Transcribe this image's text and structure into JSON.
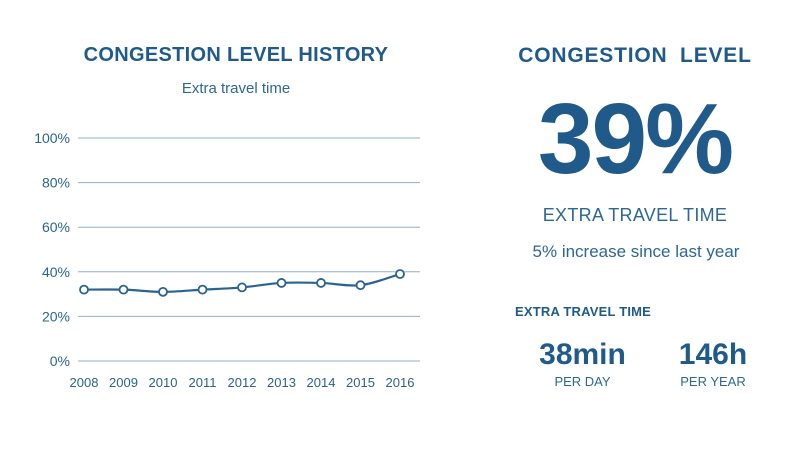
{
  "history": {
    "title": "CONGESTION LEVEL HISTORY",
    "subtitle": "Extra travel time"
  },
  "summary": {
    "title": "CONGESTION  LEVEL",
    "value": "39%",
    "caption": "EXTRA TRAVEL TIME",
    "change": "5% increase since last year",
    "section_title": "EXTRA TRAVEL TIME",
    "per_day_value": "38min",
    "per_day_unit": "PER DAY",
    "per_year_value": "146h",
    "per_year_unit": "PER YEAR"
  },
  "colors": {
    "primary": "#1f5a8a",
    "line": "#2a6391",
    "grid": "#8fb0c8"
  },
  "chart_data": {
    "type": "line",
    "title": "CONGESTION LEVEL HISTORY",
    "subtitle": "Extra travel time",
    "x": [
      "2008",
      "2009",
      "2010",
      "2011",
      "2012",
      "2013",
      "2014",
      "2015",
      "2016"
    ],
    "series": [
      {
        "values": [
          32,
          32,
          31,
          32,
          33,
          35,
          35,
          34,
          39
        ]
      }
    ],
    "ylim": [
      0,
      100
    ],
    "yticks": [
      "0%",
      "20%",
      "40%",
      "60%",
      "80%",
      "100%"
    ],
    "grid": true,
    "xlabel": "",
    "ylabel": ""
  }
}
